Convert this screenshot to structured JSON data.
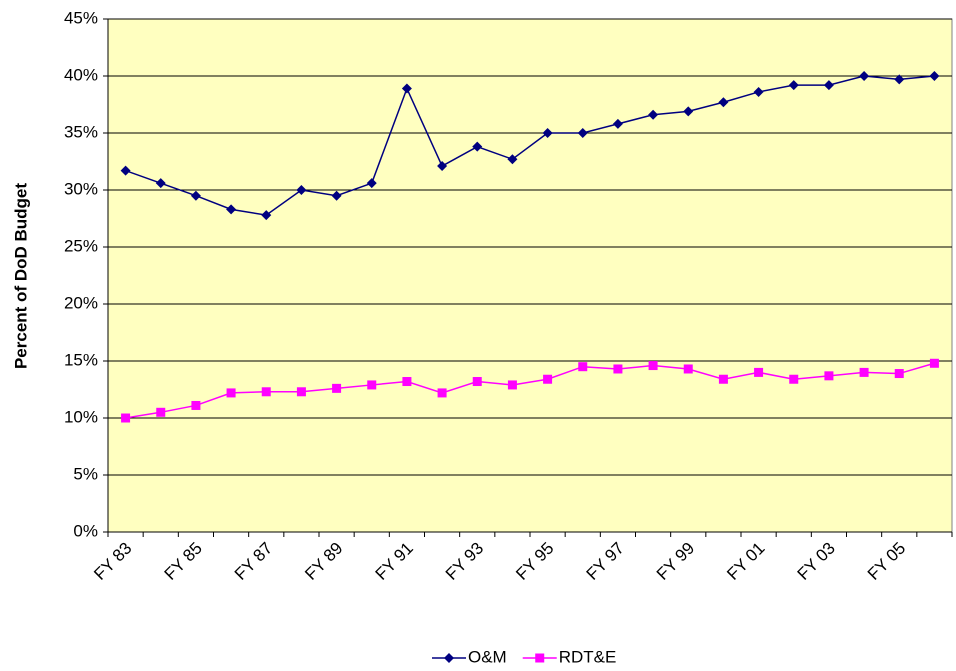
{
  "chart_data": {
    "type": "line",
    "y_label": "Percent of DoD Budget",
    "categories": [
      "FY 83",
      null,
      "FY 85",
      null,
      "FY 87",
      null,
      "FY 89",
      null,
      "FY 91",
      null,
      "FY 93",
      null,
      "FY 95",
      null,
      "FY 97",
      null,
      "FY 99",
      null,
      "FY 01",
      null,
      "FY 03",
      null,
      "FY 05",
      null
    ],
    "series": [
      {
        "name": "O&M",
        "color": "#000080",
        "marker": "diamond",
        "values": [
          31.7,
          30.6,
          29.5,
          28.3,
          27.8,
          30.0,
          29.5,
          30.6,
          38.9,
          32.1,
          33.8,
          32.7,
          35.0,
          35.0,
          35.8,
          36.6,
          36.9,
          37.7,
          38.6,
          39.2,
          39.2,
          40.0,
          39.7,
          40.0
        ]
      },
      {
        "name": "RDT&E",
        "color": "#ff00ff",
        "marker": "square",
        "values": [
          10.0,
          10.5,
          11.1,
          12.2,
          12.3,
          12.3,
          12.6,
          12.9,
          13.2,
          12.2,
          13.2,
          12.9,
          13.4,
          14.5,
          14.3,
          14.6,
          14.3,
          13.4,
          14.0,
          13.4,
          13.7,
          14.0,
          13.9,
          14.8
        ]
      }
    ],
    "ylim": [
      0,
      45
    ],
    "yticks": [
      {
        "value": 0,
        "label": "0%"
      },
      {
        "value": 5,
        "label": "5%"
      },
      {
        "value": 10,
        "label": "10%"
      },
      {
        "value": 15,
        "label": "15%"
      },
      {
        "value": 20,
        "label": "20%"
      },
      {
        "value": 25,
        "label": "25%"
      },
      {
        "value": 30,
        "label": "30%"
      },
      {
        "value": 35,
        "label": "35%"
      },
      {
        "value": 40,
        "label": "40%"
      },
      {
        "value": 45,
        "label": "45%"
      }
    ],
    "grid": true,
    "plot_background": "#ffffc0",
    "legend": "bottom"
  }
}
